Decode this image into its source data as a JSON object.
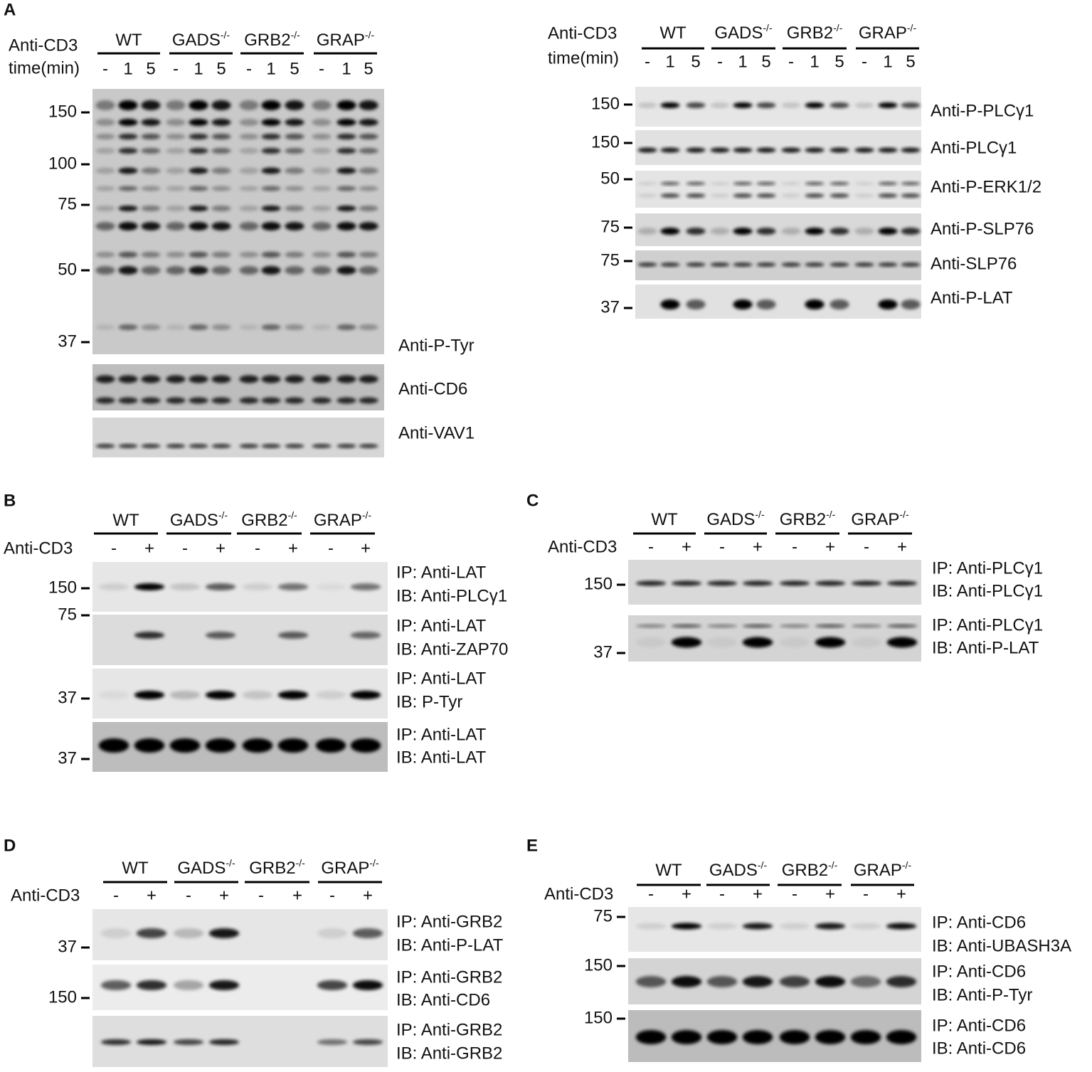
{
  "panels": [
    {
      "label": "A",
      "rows": [
        "Anti-CD3",
        "time(min)"
      ],
      "groups": [
        {
          "name": "WT"
        },
        {
          "name": "GADS",
          "sup": "-/-"
        },
        {
          "name": "GRB2",
          "sup": "-/-"
        },
        {
          "name": "GRAP",
          "sup": "-/-"
        }
      ],
      "lanes": [
        "-",
        "1",
        "5",
        "-",
        "1",
        "5",
        "-",
        "1",
        "5",
        "-",
        "1",
        "5"
      ],
      "blots": [
        {
          "markers": [
            "150",
            "100",
            "75",
            "50",
            "37"
          ],
          "label": [
            "Anti-P-Tyr"
          ]
        },
        {
          "markers": [],
          "label": [
            "Anti-CD6"
          ]
        },
        {
          "markers": [],
          "label": [
            "Anti-VAV1"
          ]
        }
      ]
    },
    {
      "rows": [
        "Anti-CD3",
        "time(min)"
      ],
      "groups": [
        {
          "name": "WT"
        },
        {
          "name": "GADS",
          "sup": "-/-"
        },
        {
          "name": "GRB2",
          "sup": "-/-"
        },
        {
          "name": "GRAP",
          "sup": "-/-"
        }
      ],
      "lanes": [
        "-",
        "1",
        "5",
        "-",
        "1",
        "5",
        "-",
        "1",
        "5",
        "-",
        "1",
        "5"
      ],
      "blots": [
        {
          "markers": [
            "150"
          ],
          "label": [
            "Anti-P-PLCγ1"
          ]
        },
        {
          "markers": [
            "150"
          ],
          "label": [
            "Anti-PLCγ1"
          ]
        },
        {
          "markers": [
            "50"
          ],
          "label": [
            "Anti-P-ERK1/2"
          ]
        },
        {
          "markers": [
            "75"
          ],
          "label": [
            "Anti-P-SLP76"
          ]
        },
        {
          "markers": [
            "75"
          ],
          "label": [
            "Anti-SLP76"
          ]
        },
        {
          "markers": [
            "37"
          ],
          "label": [
            "Anti-P-LAT"
          ]
        }
      ]
    },
    {
      "label": "B",
      "rows": [
        "Anti-CD3"
      ],
      "groups": [
        {
          "name": "WT"
        },
        {
          "name": "GADS",
          "sup": "-/-"
        },
        {
          "name": "GRB2",
          "sup": "-/-"
        },
        {
          "name": "GRAP",
          "sup": "-/-"
        }
      ],
      "lanes": [
        "-",
        "+",
        "-",
        "+",
        "-",
        "+",
        "-",
        "+"
      ],
      "blots": [
        {
          "markers": [
            "150",
            "75"
          ],
          "label": [
            "IP: Anti-LAT",
            "IB: Anti-PLCγ1"
          ]
        },
        {
          "markers": [],
          "label": [
            "IP: Anti-LAT",
            "IB: Anti-ZAP70"
          ]
        },
        {
          "markers": [
            "37"
          ],
          "label": [
            "IP: Anti-LAT",
            "IB: P-Tyr"
          ]
        },
        {
          "markers": [
            "37"
          ],
          "label": [
            "IP: Anti-LAT",
            "IB: Anti-LAT"
          ]
        }
      ]
    },
    {
      "label": "C",
      "rows": [
        "Anti-CD3"
      ],
      "groups": [
        {
          "name": "WT"
        },
        {
          "name": "GADS",
          "sup": "-/-"
        },
        {
          "name": "GRB2",
          "sup": "-/-"
        },
        {
          "name": "GRAP",
          "sup": "-/-"
        }
      ],
      "lanes": [
        "-",
        "+",
        "-",
        "+",
        "-",
        "+",
        "-",
        "+"
      ],
      "blots": [
        {
          "markers": [
            "150"
          ],
          "label": [
            "IP: Anti-PLCγ1",
            "IB: Anti-PLCγ1"
          ]
        },
        {
          "markers": [
            "37"
          ],
          "label": [
            "IP: Anti-PLCγ1",
            "IB: Anti-P-LAT"
          ]
        }
      ]
    },
    {
      "label": "D",
      "rows": [
        "Anti-CD3"
      ],
      "groups": [
        {
          "name": "WT"
        },
        {
          "name": "GADS",
          "sup": "-/-"
        },
        {
          "name": "GRB2",
          "sup": "-/-"
        },
        {
          "name": "GRAP",
          "sup": "-/-"
        }
      ],
      "lanes": [
        "-",
        "+",
        "-",
        "+",
        "-",
        "+",
        "-",
        "+"
      ],
      "blots": [
        {
          "markers": [
            "37"
          ],
          "label": [
            "IP: Anti-GRB2",
            "IB: Anti-P-LAT"
          ]
        },
        {
          "markers": [
            "150"
          ],
          "label": [
            "IP: Anti-GRB2",
            "IB: Anti-CD6"
          ]
        },
        {
          "markers": [],
          "label": [
            "IP: Anti-GRB2",
            "IB: Anti-GRB2"
          ]
        }
      ]
    },
    {
      "label": "E",
      "rows": [
        "Anti-CD3"
      ],
      "groups": [
        {
          "name": "WT"
        },
        {
          "name": "GADS",
          "sup": "-/-"
        },
        {
          "name": "GRB2",
          "sup": "-/-"
        },
        {
          "name": "GRAP",
          "sup": "-/-"
        }
      ],
      "lanes": [
        "-",
        "+",
        "-",
        "+",
        "-",
        "+",
        "-",
        "+"
      ],
      "blots": [
        {
          "markers": [
            "75"
          ],
          "label": [
            "IP: Anti-CD6",
            "IB: Anti-UBASH3A"
          ]
        },
        {
          "markers": [
            "150"
          ],
          "label": [
            "IP: Anti-CD6",
            "IB: Anti-P-Tyr"
          ]
        },
        {
          "markers": [
            "150"
          ],
          "label": [
            "IP: Anti-CD6",
            "IB: Anti-CD6"
          ]
        }
      ]
    }
  ]
}
